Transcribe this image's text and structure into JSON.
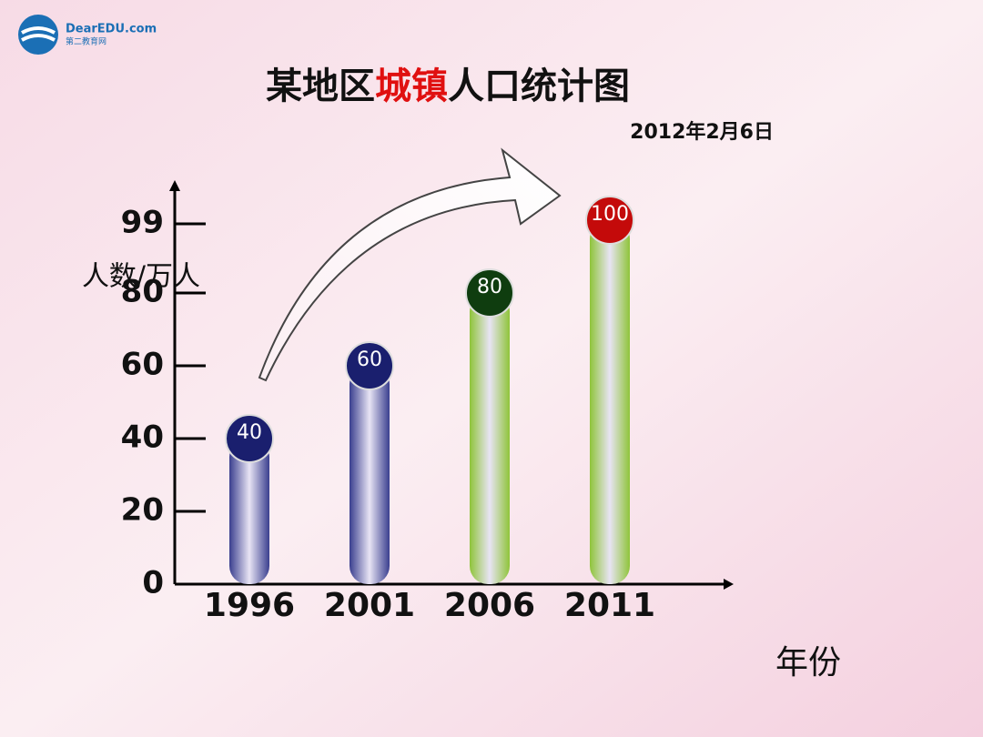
{
  "logo": {
    "name": "DearEDU.com",
    "subtitle": "第二教育网"
  },
  "chart_data": {
    "type": "bar",
    "title": [
      {
        "text": "某地区",
        "color": "#111111"
      },
      {
        "text": "城镇",
        "color": "#e01010"
      },
      {
        "text": "人口统计图",
        "color": "#111111"
      }
    ],
    "date": "2012年2月6日",
    "y_label": "人数/万人",
    "x_label": "年份",
    "categories": [
      "1996",
      "2001",
      "2006",
      "2011"
    ],
    "values": [
      40,
      60,
      80,
      100
    ],
    "colors": [
      "#3a3f8f",
      "#3a3f8f",
      "#8fc43a",
      "#8fc43a"
    ],
    "marker_colors": [
      "#1a1f6e",
      "#1a1f6e",
      "#0f3d0f",
      "#c40a0a"
    ],
    "ylim": [
      0,
      109
    ],
    "yticks": [
      0,
      20,
      40,
      60,
      80,
      99
    ]
  }
}
